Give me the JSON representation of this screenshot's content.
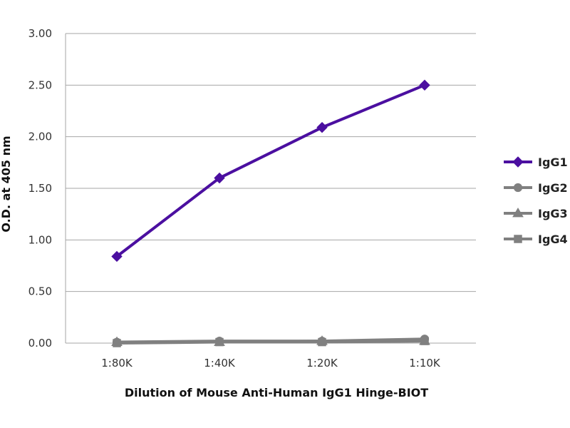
{
  "chart_data": {
    "type": "line",
    "title": "",
    "xlabel": "Dilution of Mouse Anti-Human IgG1 Hinge-BIOT",
    "ylabel": "O.D. at 405 nm",
    "categories": [
      "1:80K",
      "1:40K",
      "1:20K",
      "1:10K"
    ],
    "ylim": [
      0,
      3
    ],
    "yticks": [
      "0.00",
      "0.50",
      "1.00",
      "1.50",
      "2.00",
      "2.50",
      "3.00"
    ],
    "grid": true,
    "legend_position": "right",
    "series": [
      {
        "name": "IgG1",
        "marker": "diamond",
        "color": "#4b0fa0",
        "values": [
          0.84,
          1.6,
          2.09,
          2.5
        ]
      },
      {
        "name": "IgG2",
        "marker": "circle",
        "color": "#808080",
        "values": [
          0.01,
          0.02,
          0.02,
          0.04
        ]
      },
      {
        "name": "IgG3",
        "marker": "triangle",
        "color": "#808080",
        "values": [
          0.01,
          0.01,
          0.02,
          0.02
        ]
      },
      {
        "name": "IgG4",
        "marker": "square",
        "color": "#808080",
        "values": [
          0.0,
          0.01,
          0.01,
          0.02
        ]
      }
    ]
  }
}
